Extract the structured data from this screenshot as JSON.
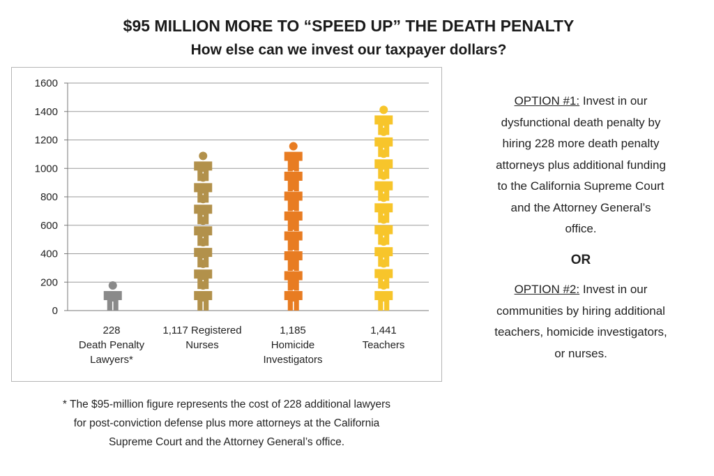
{
  "header": {
    "title": "$95 MILLION MORE TO “SPEED UP” THE DEATH PENALTY",
    "subtitle": "How else can we invest our taxpayer dollars?"
  },
  "chart_data": {
    "type": "bar",
    "pictograph": true,
    "icon": "person-icon",
    "categories": [
      {
        "value_label": "228",
        "lines": [
          "Death Penalty",
          "Lawyers*"
        ]
      },
      {
        "value_label": "1,117 Registered",
        "lines": [
          "Nurses"
        ]
      },
      {
        "value_label": "1,185",
        "lines": [
          "Homicide",
          "Investigators"
        ]
      },
      {
        "value_label": "1,441",
        "lines": [
          "Teachers"
        ]
      }
    ],
    "values": [
      228,
      1117,
      1185,
      1441
    ],
    "colors": [
      "#8a8a8a",
      "#b2914b",
      "#e87c22",
      "#f7c52b"
    ],
    "yticks": [
      "0",
      "200",
      "400",
      "600",
      "800",
      "1000",
      "1200",
      "1400",
      "1600"
    ],
    "ylim": [
      0,
      1600
    ],
    "grid": true,
    "legend": "none"
  },
  "footnote": {
    "lines": [
      "* The $95-million figure represents the cost of 228 additional lawyers",
      "for post-conviction defense plus more attorneys at the California",
      "Supreme Court and the Attorney General’s office."
    ]
  },
  "options": {
    "option1_label": "OPTION #1:",
    "option1_lines": [
      " Invest in our",
      "dysfunctional death penalty by",
      "hiring 228 more death penalty",
      "attorneys plus additional funding",
      "to the California Supreme Court",
      "and the Attorney General’s",
      "office."
    ],
    "or_text": "OR",
    "option2_label": "OPTION #2:",
    "option2_lines": [
      " Invest in our",
      "communities by hiring additional",
      "teachers, homicide investigators,",
      "or nurses."
    ]
  }
}
